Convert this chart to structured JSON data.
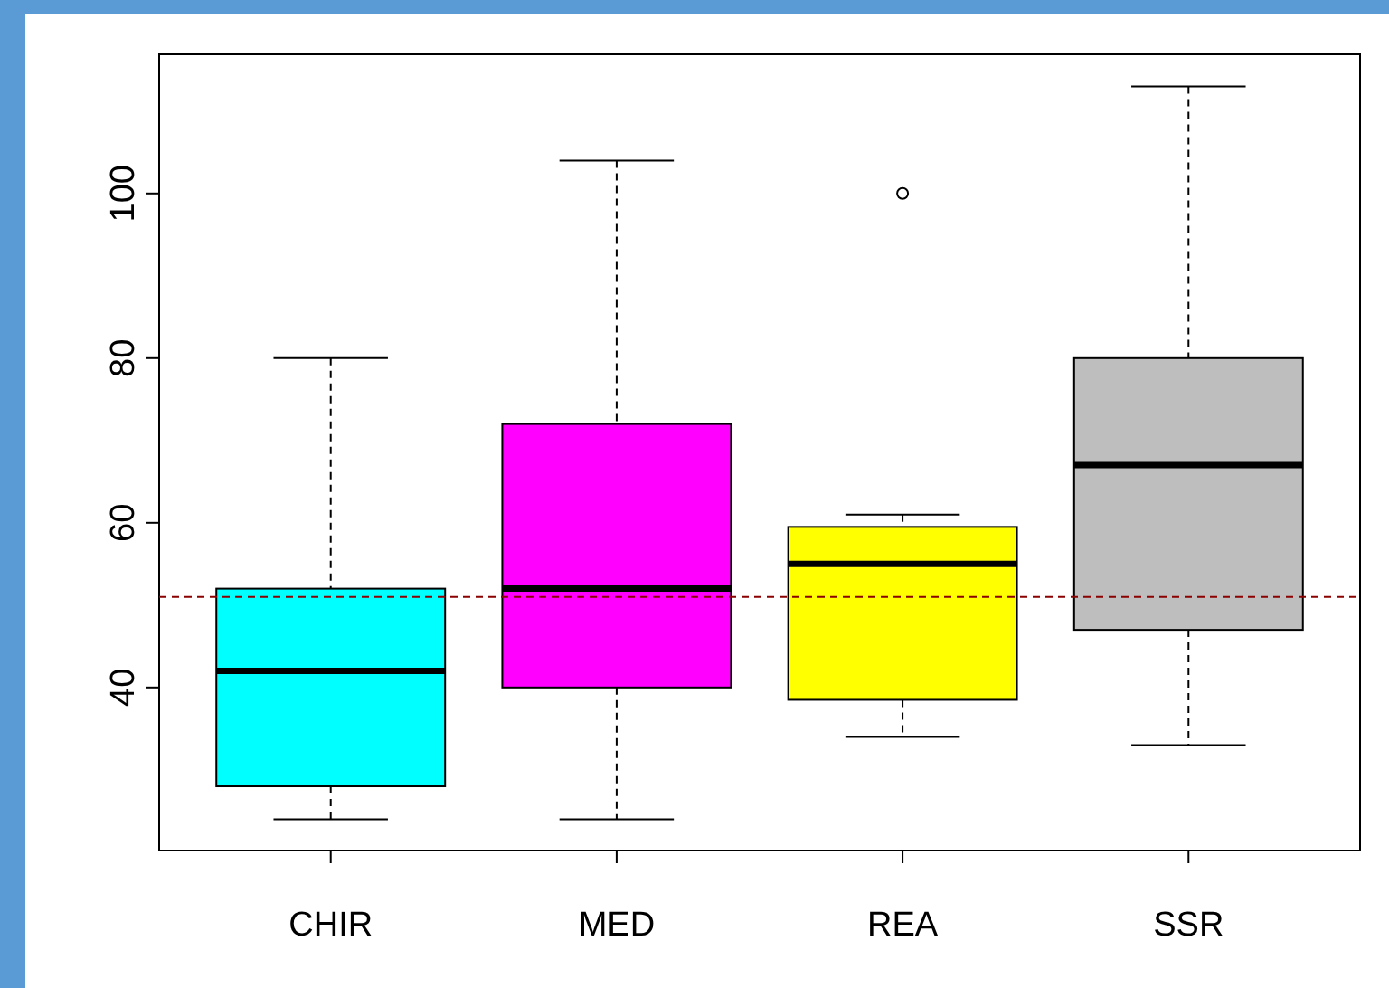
{
  "chart_data": {
    "type": "box",
    "categories": [
      "CHIR",
      "MED",
      "REA",
      "SSR"
    ],
    "colors": [
      "#00ffff",
      "#ff00ff",
      "#ffff00",
      "#bebebe"
    ],
    "boxes": [
      {
        "low": 24,
        "q1": 28,
        "median": 42,
        "q3": 52,
        "high": 80
      },
      {
        "low": 24,
        "q1": 40,
        "median": 52,
        "q3": 72,
        "high": 104
      },
      {
        "low": 34,
        "q1": 38.5,
        "median": 55,
        "q3": 59.5,
        "high": 61,
        "outliers": [
          100
        ]
      },
      {
        "low": 33,
        "q1": 47,
        "median": 67,
        "q3": 80,
        "high": 113
      }
    ],
    "ylim": [
      20.2,
      116.9
    ],
    "yticks": [
      40,
      60,
      80,
      100
    ],
    "ref_lines": [
      {
        "axis": "y",
        "value": 51,
        "color": "#8b0000",
        "line_style": "dashed"
      }
    ]
  }
}
